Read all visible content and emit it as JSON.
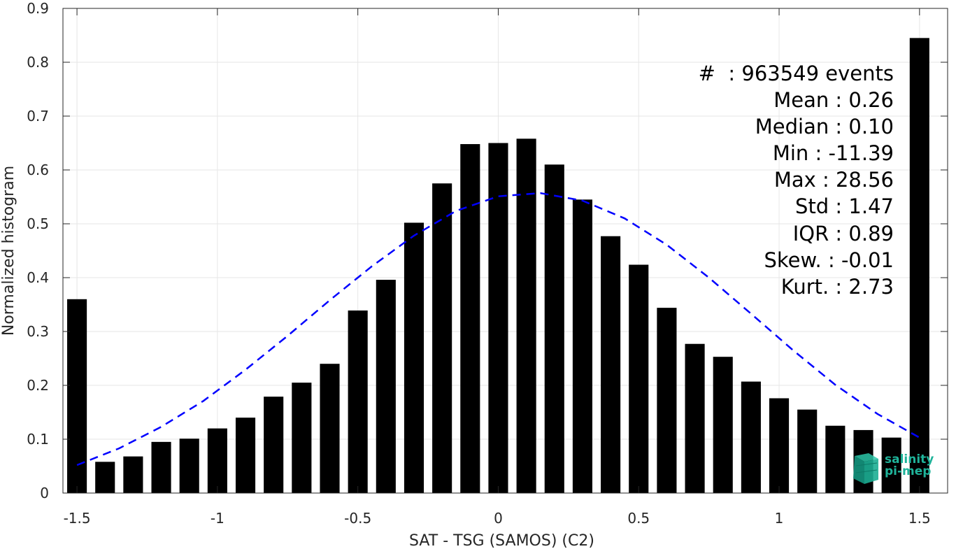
{
  "chart_data": {
    "type": "bar",
    "xlabel": "SAT - TSG (SAMOS) (C2)",
    "ylabel": "Normalized histogram",
    "xlim": [
      -1.55,
      1.6
    ],
    "ylim": [
      0,
      0.9
    ],
    "xticks": [
      -1.5,
      -1,
      -0.5,
      0,
      0.5,
      1,
      1.5
    ],
    "xtick_labels": [
      "-1.5",
      "-1",
      "-0.5",
      "0",
      "0.5",
      "1",
      "1.5"
    ],
    "yticks": [
      0,
      0.1,
      0.2,
      0.3,
      0.4,
      0.5,
      0.6,
      0.7,
      0.8,
      0.9
    ],
    "ytick_labels": [
      "0",
      "0.1",
      "0.2",
      "0.3",
      "0.4",
      "0.5",
      "0.6",
      "0.7",
      "0.8",
      "0.9"
    ],
    "grid": true,
    "bar_color": "#000000",
    "bars": {
      "x": [
        -1.5,
        -1.4,
        -1.3,
        -1.2,
        -1.1,
        -1.0,
        -0.9,
        -0.8,
        -0.7,
        -0.6,
        -0.5,
        -0.4,
        -0.3,
        -0.2,
        -0.1,
        0.0,
        0.1,
        0.2,
        0.3,
        0.4,
        0.5,
        0.6,
        0.7,
        0.8,
        0.9,
        1.0,
        1.1,
        1.2,
        1.3,
        1.4,
        1.5
      ],
      "values": [
        0.36,
        0.058,
        0.068,
        0.095,
        0.101,
        0.12,
        0.14,
        0.179,
        0.205,
        0.24,
        0.339,
        0.396,
        0.502,
        0.575,
        0.648,
        0.65,
        0.658,
        0.61,
        0.545,
        0.477,
        0.424,
        0.344,
        0.277,
        0.253,
        0.207,
        0.176,
        0.155,
        0.125,
        0.117,
        0.103,
        0.845
      ]
    },
    "fit": {
      "type": "gaussian",
      "color": "#0000ff",
      "style": "dashed",
      "x": [
        -1.5,
        -1.35,
        -1.2,
        -1.05,
        -0.9,
        -0.75,
        -0.6,
        -0.45,
        -0.3,
        -0.15,
        0.0,
        0.15,
        0.3,
        0.45,
        0.6,
        0.75,
        0.9,
        1.05,
        1.2,
        1.35,
        1.5
      ],
      "y": [
        0.052,
        0.083,
        0.123,
        0.171,
        0.229,
        0.292,
        0.358,
        0.421,
        0.478,
        0.524,
        0.551,
        0.557,
        0.543,
        0.51,
        0.461,
        0.4,
        0.333,
        0.265,
        0.201,
        0.147,
        0.103
      ]
    },
    "annotations": [
      "#  : 963549 events",
      "Mean : 0.26",
      "Median : 0.10",
      "Min : -11.39",
      "Max : 28.56",
      "Std : 1.47",
      "IQR : 0.89",
      "Skew. : -0.01",
      "Kurt. : 2.73"
    ]
  },
  "logo": {
    "line1": "salinity",
    "line2": "pi-mep",
    "color": "#1fb39a"
  }
}
